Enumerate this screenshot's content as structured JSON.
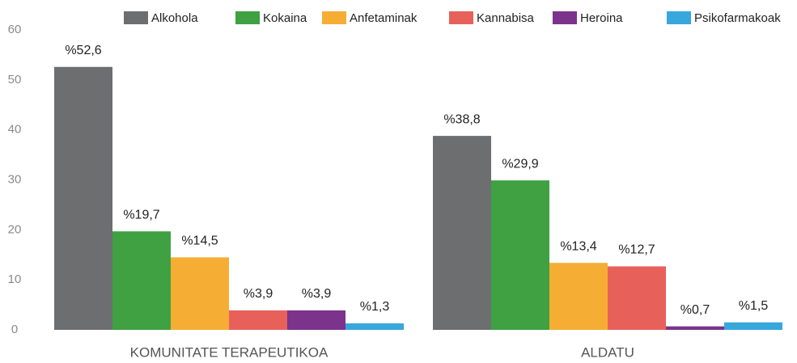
{
  "chart_data": {
    "type": "bar",
    "categories": [
      "KOMUNITATE TERAPEUTIKOA",
      "ALDATU"
    ],
    "series": [
      {
        "name": "Alkohola",
        "color": "#6d6e70",
        "values": [
          52.6,
          38.8
        ],
        "value_labels": [
          "%52,6",
          "%38,8"
        ]
      },
      {
        "name": "Kokaina",
        "color": "#3fa142",
        "values": [
          19.7,
          29.9
        ],
        "value_labels": [
          "%19,7",
          "%29,9"
        ]
      },
      {
        "name": "Anfetaminak",
        "color": "#f5ae33",
        "values": [
          14.5,
          13.4
        ],
        "value_labels": [
          "%14,5",
          "%13,4"
        ]
      },
      {
        "name": "Kannabisa",
        "color": "#e8605a",
        "values": [
          3.9,
          12.7
        ],
        "value_labels": [
          "%3,9",
          "%12,7"
        ]
      },
      {
        "name": "Heroina",
        "color": "#7b338b",
        "values": [
          3.9,
          0.7
        ],
        "value_labels": [
          "%3,9",
          "%0,7"
        ]
      },
      {
        "name": "Psikofarmakoak",
        "color": "#37a7dc",
        "values": [
          1.3,
          1.5
        ],
        "value_labels": [
          "%1,3",
          "%1,5"
        ]
      }
    ],
    "ylim": [
      0,
      60
    ],
    "yticks": [
      0,
      10,
      20,
      30,
      40,
      50,
      60
    ],
    "grid": false
  }
}
